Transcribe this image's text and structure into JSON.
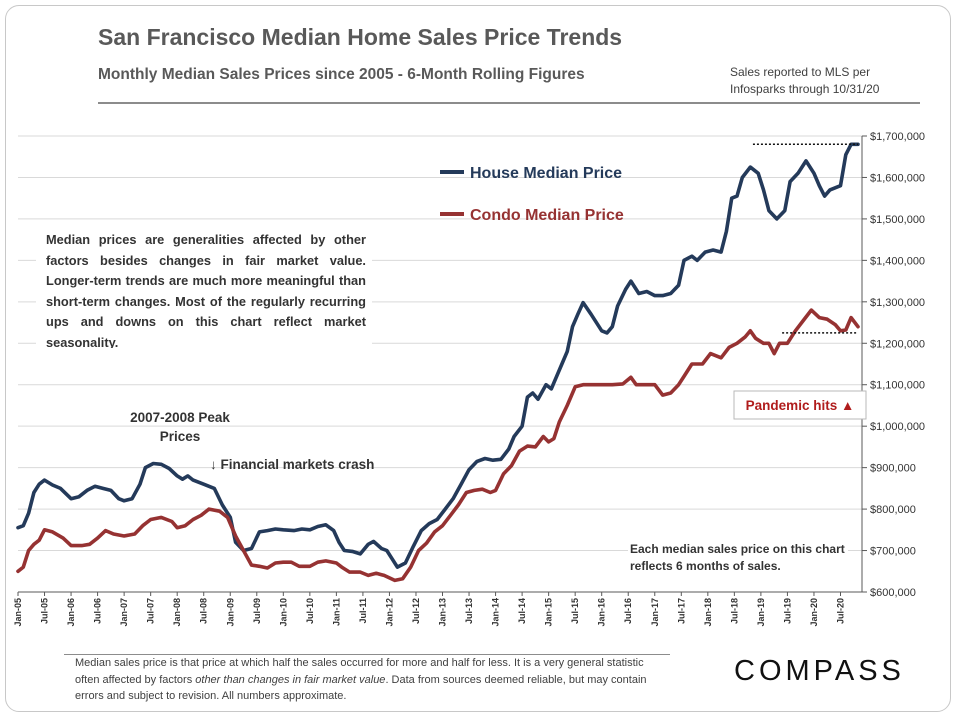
{
  "header": {
    "title": "San Francisco Median Home Sales Price Trends",
    "subtitle": "Monthly Median Sales Prices since 2005 - 6-Month Rolling Figures",
    "source_note": "Sales reported to MLS per Infosparks through 10/31/20"
  },
  "footer": {
    "footnote_parts": [
      "Median sales price is that price at which half the sales occurred for more and half for less. It is a very general statistic often affected by factors ",
      "other than changes in fair market value",
      ". Data from sources deemed reliable, but may contain errors and subject to revision. All numbers approximate."
    ],
    "brand": "COMPASS"
  },
  "chart_data": {
    "type": "line",
    "ylim": [
      600000,
      1700000
    ],
    "yticks": [
      600000,
      700000,
      800000,
      900000,
      1000000,
      1100000,
      1200000,
      1300000,
      1400000,
      1500000,
      1600000,
      1700000
    ],
    "ytick_labels": [
      "$600,000",
      "$700,000",
      "$800,000",
      "$900,000",
      "$1,000,000",
      "$1,100,000",
      "$1,200,000",
      "$1,300,000",
      "$1,400,000",
      "$1,500,000",
      "$1,600,000",
      "$1,700,000"
    ],
    "xlim": [
      2005.0,
      2020.83
    ],
    "xticks": [
      2005.0,
      2005.5,
      2006.0,
      2006.5,
      2007.0,
      2007.5,
      2008.0,
      2008.5,
      2009.0,
      2009.5,
      2010.0,
      2010.5,
      2011.0,
      2011.5,
      2012.0,
      2012.5,
      2013.0,
      2013.5,
      2014.0,
      2014.5,
      2015.0,
      2015.5,
      2016.0,
      2016.5,
      2017.0,
      2017.5,
      2018.0,
      2018.5,
      2019.0,
      2019.5,
      2020.0,
      2020.5
    ],
    "xtick_labels": [
      "Jan-05",
      "Jul-05",
      "Jan-06",
      "Jul-06",
      "Jan-07",
      "Jul-07",
      "Jan-08",
      "Jul-08",
      "Jan-09",
      "Jul-09",
      "Jan-10",
      "Jul-10",
      "Jan-11",
      "Jul-11",
      "Jan-12",
      "Jul-12",
      "Jan-13",
      "Jul-13",
      "Jan-14",
      "Jul-14",
      "Jan-15",
      "Jul-15",
      "Jan-16",
      "Jul-16",
      "Jan-17",
      "Jul-17",
      "Jan-18",
      "Jul-18",
      "Jan-19",
      "Jul-19",
      "Jan-20",
      "Jul-20"
    ],
    "series": [
      {
        "name": "House Median Price",
        "color": "#243a5a",
        "points": [
          [
            2005.0,
            755000
          ],
          [
            2005.1,
            760000
          ],
          [
            2005.2,
            790000
          ],
          [
            2005.3,
            840000
          ],
          [
            2005.4,
            860000
          ],
          [
            2005.5,
            870000
          ],
          [
            2005.65,
            858000
          ],
          [
            2005.8,
            850000
          ],
          [
            2006.0,
            825000
          ],
          [
            2006.15,
            830000
          ],
          [
            2006.3,
            845000
          ],
          [
            2006.45,
            855000
          ],
          [
            2006.6,
            850000
          ],
          [
            2006.75,
            845000
          ],
          [
            2006.9,
            825000
          ],
          [
            2007.0,
            820000
          ],
          [
            2007.15,
            825000
          ],
          [
            2007.3,
            860000
          ],
          [
            2007.4,
            900000
          ],
          [
            2007.55,
            910000
          ],
          [
            2007.7,
            908000
          ],
          [
            2007.85,
            898000
          ],
          [
            2008.0,
            880000
          ],
          [
            2008.1,
            872000
          ],
          [
            2008.2,
            880000
          ],
          [
            2008.3,
            870000
          ],
          [
            2008.5,
            860000
          ],
          [
            2008.7,
            850000
          ],
          [
            2008.85,
            810000
          ],
          [
            2009.0,
            780000
          ],
          [
            2009.1,
            720000
          ],
          [
            2009.25,
            700000
          ],
          [
            2009.4,
            705000
          ],
          [
            2009.55,
            745000
          ],
          [
            2009.7,
            748000
          ],
          [
            2009.85,
            752000
          ],
          [
            2010.0,
            750000
          ],
          [
            2010.2,
            748000
          ],
          [
            2010.35,
            752000
          ],
          [
            2010.5,
            750000
          ],
          [
            2010.65,
            758000
          ],
          [
            2010.8,
            762000
          ],
          [
            2010.95,
            748000
          ],
          [
            2011.05,
            720000
          ],
          [
            2011.15,
            700000
          ],
          [
            2011.3,
            698000
          ],
          [
            2011.45,
            692000
          ],
          [
            2011.6,
            715000
          ],
          [
            2011.7,
            722000
          ],
          [
            2011.85,
            705000
          ],
          [
            2011.95,
            700000
          ],
          [
            2012.05,
            680000
          ],
          [
            2012.15,
            660000
          ],
          [
            2012.3,
            670000
          ],
          [
            2012.45,
            710000
          ],
          [
            2012.6,
            748000
          ],
          [
            2012.75,
            765000
          ],
          [
            2012.9,
            775000
          ],
          [
            2013.05,
            800000
          ],
          [
            2013.2,
            825000
          ],
          [
            2013.35,
            860000
          ],
          [
            2013.5,
            895000
          ],
          [
            2013.65,
            915000
          ],
          [
            2013.8,
            922000
          ],
          [
            2013.95,
            918000
          ],
          [
            2014.1,
            920000
          ],
          [
            2014.25,
            945000
          ],
          [
            2014.35,
            975000
          ],
          [
            2014.5,
            1000000
          ],
          [
            2014.6,
            1070000
          ],
          [
            2014.7,
            1080000
          ],
          [
            2014.8,
            1065000
          ],
          [
            2014.95,
            1100000
          ],
          [
            2015.05,
            1090000
          ],
          [
            2015.15,
            1120000
          ],
          [
            2015.25,
            1150000
          ],
          [
            2015.35,
            1180000
          ],
          [
            2015.45,
            1240000
          ],
          [
            2015.55,
            1270000
          ],
          [
            2015.65,
            1298000
          ],
          [
            2015.8,
            1270000
          ],
          [
            2016.0,
            1230000
          ],
          [
            2016.1,
            1225000
          ],
          [
            2016.2,
            1240000
          ],
          [
            2016.3,
            1290000
          ],
          [
            2016.45,
            1330000
          ],
          [
            2016.55,
            1350000
          ],
          [
            2016.7,
            1320000
          ],
          [
            2016.85,
            1325000
          ],
          [
            2017.0,
            1315000
          ],
          [
            2017.15,
            1315000
          ],
          [
            2017.3,
            1320000
          ],
          [
            2017.45,
            1340000
          ],
          [
            2017.55,
            1400000
          ],
          [
            2017.7,
            1410000
          ],
          [
            2017.8,
            1400000
          ],
          [
            2017.95,
            1420000
          ],
          [
            2018.1,
            1425000
          ],
          [
            2018.25,
            1420000
          ],
          [
            2018.35,
            1470000
          ],
          [
            2018.45,
            1550000
          ],
          [
            2018.55,
            1555000
          ],
          [
            2018.65,
            1600000
          ],
          [
            2018.8,
            1625000
          ],
          [
            2018.95,
            1610000
          ],
          [
            2019.05,
            1570000
          ],
          [
            2019.15,
            1520000
          ],
          [
            2019.3,
            1500000
          ],
          [
            2019.45,
            1520000
          ],
          [
            2019.55,
            1590000
          ],
          [
            2019.7,
            1610000
          ],
          [
            2019.85,
            1640000
          ],
          [
            2020.0,
            1610000
          ],
          [
            2020.1,
            1580000
          ],
          [
            2020.2,
            1555000
          ],
          [
            2020.3,
            1570000
          ],
          [
            2020.4,
            1575000
          ],
          [
            2020.5,
            1580000
          ],
          [
            2020.6,
            1655000
          ],
          [
            2020.7,
            1680000
          ],
          [
            2020.83,
            1680000
          ]
        ]
      },
      {
        "name": "Condo Median Price",
        "color": "#963232",
        "points": [
          [
            2005.0,
            650000
          ],
          [
            2005.1,
            660000
          ],
          [
            2005.2,
            700000
          ],
          [
            2005.3,
            715000
          ],
          [
            2005.4,
            725000
          ],
          [
            2005.5,
            750000
          ],
          [
            2005.65,
            745000
          ],
          [
            2005.85,
            730000
          ],
          [
            2006.0,
            712000
          ],
          [
            2006.2,
            712000
          ],
          [
            2006.35,
            715000
          ],
          [
            2006.5,
            730000
          ],
          [
            2006.65,
            748000
          ],
          [
            2006.8,
            740000
          ],
          [
            2007.0,
            735000
          ],
          [
            2007.2,
            740000
          ],
          [
            2007.35,
            760000
          ],
          [
            2007.5,
            775000
          ],
          [
            2007.7,
            780000
          ],
          [
            2007.9,
            770000
          ],
          [
            2008.0,
            755000
          ],
          [
            2008.15,
            760000
          ],
          [
            2008.3,
            775000
          ],
          [
            2008.45,
            785000
          ],
          [
            2008.6,
            800000
          ],
          [
            2008.8,
            795000
          ],
          [
            2008.95,
            780000
          ],
          [
            2009.1,
            735000
          ],
          [
            2009.25,
            700000
          ],
          [
            2009.4,
            665000
          ],
          [
            2009.55,
            662000
          ],
          [
            2009.7,
            658000
          ],
          [
            2009.85,
            670000
          ],
          [
            2010.0,
            672000
          ],
          [
            2010.15,
            672000
          ],
          [
            2010.3,
            662000
          ],
          [
            2010.5,
            662000
          ],
          [
            2010.65,
            672000
          ],
          [
            2010.8,
            675000
          ],
          [
            2011.0,
            670000
          ],
          [
            2011.1,
            660000
          ],
          [
            2011.25,
            648000
          ],
          [
            2011.45,
            648000
          ],
          [
            2011.6,
            640000
          ],
          [
            2011.75,
            645000
          ],
          [
            2011.9,
            640000
          ],
          [
            2012.1,
            628000
          ],
          [
            2012.25,
            632000
          ],
          [
            2012.4,
            660000
          ],
          [
            2012.55,
            700000
          ],
          [
            2012.7,
            718000
          ],
          [
            2012.85,
            745000
          ],
          [
            2013.0,
            760000
          ],
          [
            2013.15,
            785000
          ],
          [
            2013.3,
            810000
          ],
          [
            2013.45,
            840000
          ],
          [
            2013.6,
            845000
          ],
          [
            2013.75,
            848000
          ],
          [
            2013.9,
            840000
          ],
          [
            2014.0,
            845000
          ],
          [
            2014.15,
            885000
          ],
          [
            2014.3,
            905000
          ],
          [
            2014.45,
            940000
          ],
          [
            2014.6,
            952000
          ],
          [
            2014.75,
            950000
          ],
          [
            2014.9,
            975000
          ],
          [
            2015.0,
            962000
          ],
          [
            2015.1,
            970000
          ],
          [
            2015.2,
            1010000
          ],
          [
            2015.35,
            1050000
          ],
          [
            2015.5,
            1095000
          ],
          [
            2015.65,
            1100000
          ],
          [
            2015.85,
            1100000
          ],
          [
            2016.0,
            1100000
          ],
          [
            2016.2,
            1100000
          ],
          [
            2016.4,
            1102000
          ],
          [
            2016.55,
            1118000
          ],
          [
            2016.65,
            1100000
          ],
          [
            2016.85,
            1100000
          ],
          [
            2017.0,
            1100000
          ],
          [
            2017.15,
            1075000
          ],
          [
            2017.3,
            1080000
          ],
          [
            2017.45,
            1100000
          ],
          [
            2017.55,
            1120000
          ],
          [
            2017.7,
            1150000
          ],
          [
            2017.9,
            1150000
          ],
          [
            2018.05,
            1175000
          ],
          [
            2018.25,
            1165000
          ],
          [
            2018.4,
            1190000
          ],
          [
            2018.55,
            1200000
          ],
          [
            2018.7,
            1215000
          ],
          [
            2018.8,
            1230000
          ],
          [
            2018.9,
            1212000
          ],
          [
            2019.05,
            1200000
          ],
          [
            2019.15,
            1200000
          ],
          [
            2019.25,
            1175000
          ],
          [
            2019.35,
            1200000
          ],
          [
            2019.5,
            1200000
          ],
          [
            2019.65,
            1230000
          ],
          [
            2019.8,
            1255000
          ],
          [
            2019.95,
            1280000
          ],
          [
            2020.1,
            1262000
          ],
          [
            2020.25,
            1258000
          ],
          [
            2020.4,
            1245000
          ],
          [
            2020.5,
            1230000
          ],
          [
            2020.6,
            1232000
          ],
          [
            2020.7,
            1262000
          ],
          [
            2020.83,
            1240000
          ]
        ]
      }
    ],
    "reference_lines": [
      {
        "name": "house-latest-reference",
        "value": 1680000,
        "from": 2018.85,
        "to": 2020.83
      },
      {
        "name": "condo-latest-reference",
        "value": 1225000,
        "from": 2019.4,
        "to": 2020.83
      }
    ],
    "legend": [
      "House Median Price",
      "Condo Median Price"
    ],
    "annotations": {
      "note_box": "Median prices are generalities affected by other factors besides changes in fair market value. Longer-term trends are much more meaningful than short-term changes. Most of the regularly recurring ups and downs on this chart reflect market seasonality.",
      "peak_label": "2007-2008 Peak Prices",
      "crash_label": "↓ Financial markets crash",
      "pandemic_label": "Pandemic hits ▲",
      "six_month_note": "Each median sales price on this chart reflects 6 months of sales."
    }
  }
}
